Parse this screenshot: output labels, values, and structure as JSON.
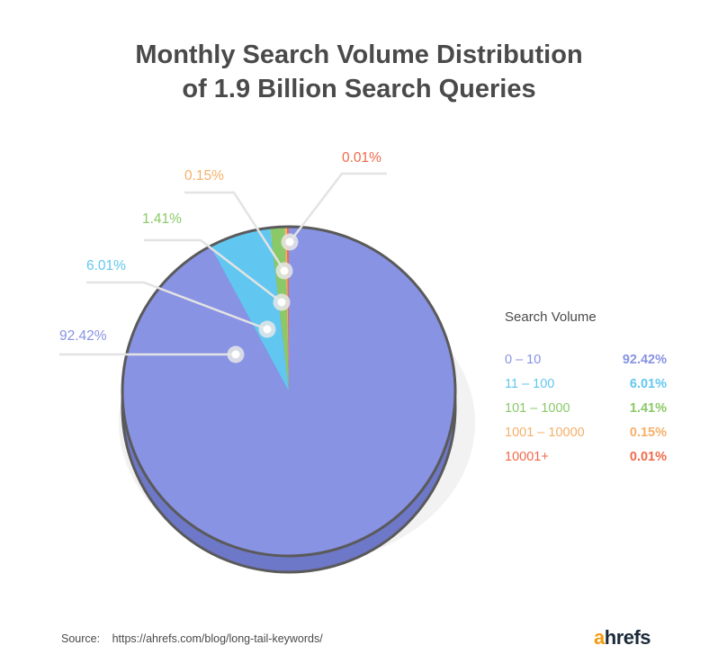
{
  "title": {
    "line1": "Monthly Search Volume Distribution",
    "line2": "of 1.9 Billion Search Queries"
  },
  "chart_data": {
    "type": "pie",
    "title": "Monthly Search Volume Distribution of 1.9 Billion Search Queries",
    "legend_title": "Search Volume",
    "legend_position": "right",
    "slices": [
      {
        "label": "0 – 10",
        "value": 92.42,
        "display": "92.42%",
        "color": "#8893e4"
      },
      {
        "label": "11 – 100",
        "value": 6.01,
        "display": "6.01%",
        "color": "#62c7f0"
      },
      {
        "label": "101 – 1000",
        "value": 1.41,
        "display": "1.41%",
        "color": "#8bc968"
      },
      {
        "label": "1001 – 10000",
        "value": 0.15,
        "display": "0.15%",
        "color": "#f5b06a"
      },
      {
        "label": "10001+",
        "value": 0.01,
        "display": "0.01%",
        "color": "#f06a4a"
      }
    ]
  },
  "source": {
    "label": "Source:",
    "url": "https://ahrefs.com/blog/long-tail-keywords/"
  },
  "brand": {
    "accent": "a",
    "rest": "hrefs",
    "accent_color": "#f39c12"
  }
}
